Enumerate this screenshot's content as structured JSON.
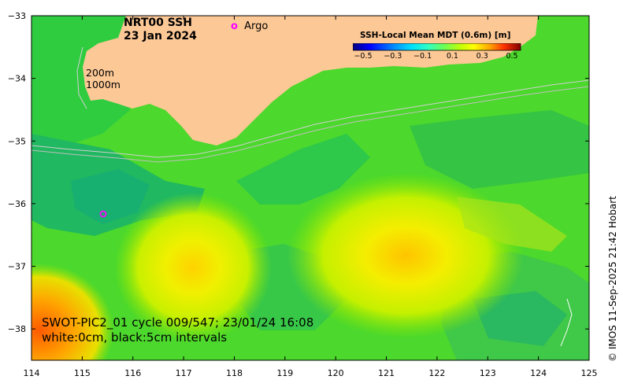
{
  "map": {
    "title_line1": "NRT00 SSH",
    "title_line2": "23 Jan 2024",
    "swot_line1": "SWOT-PIC2_01 cycle 009/547; 23/01/24 16:08",
    "swot_line2": "white:0cm, black:5cm intervals",
    "contour_label_200": "200m",
    "contour_label_1000": "1000m",
    "argo_label": "Argo",
    "argo_color": "#ff00ff",
    "credit": "© IMOS 11-Sep-2025 21:42 Hobart",
    "land_color": "#fcc896",
    "longitude": {
      "min": 114,
      "max": 125,
      "ticks": [
        "114",
        "115",
        "116",
        "117",
        "118",
        "119",
        "120",
        "121",
        "122",
        "123",
        "124",
        "125"
      ]
    },
    "latitude": {
      "min": -38.5,
      "max": -33,
      "ticks": [
        "−33",
        "−34",
        "−35",
        "−36",
        "−37",
        "−38"
      ]
    }
  },
  "colorbar": {
    "title": "SSH-Local Mean MDT (0.6m) [m]",
    "ticks": [
      "−0.5",
      "−0.3",
      "−0.1",
      "0.1",
      "0.3",
      "0.5"
    ],
    "colors": [
      "#00007f",
      "#0000ff",
      "#0070ff",
      "#00d8ff",
      "#20ffd0",
      "#40ff40",
      "#a8ff00",
      "#ffff00",
      "#ffb000",
      "#ff4000",
      "#c00000",
      "#7f0000"
    ]
  }
}
